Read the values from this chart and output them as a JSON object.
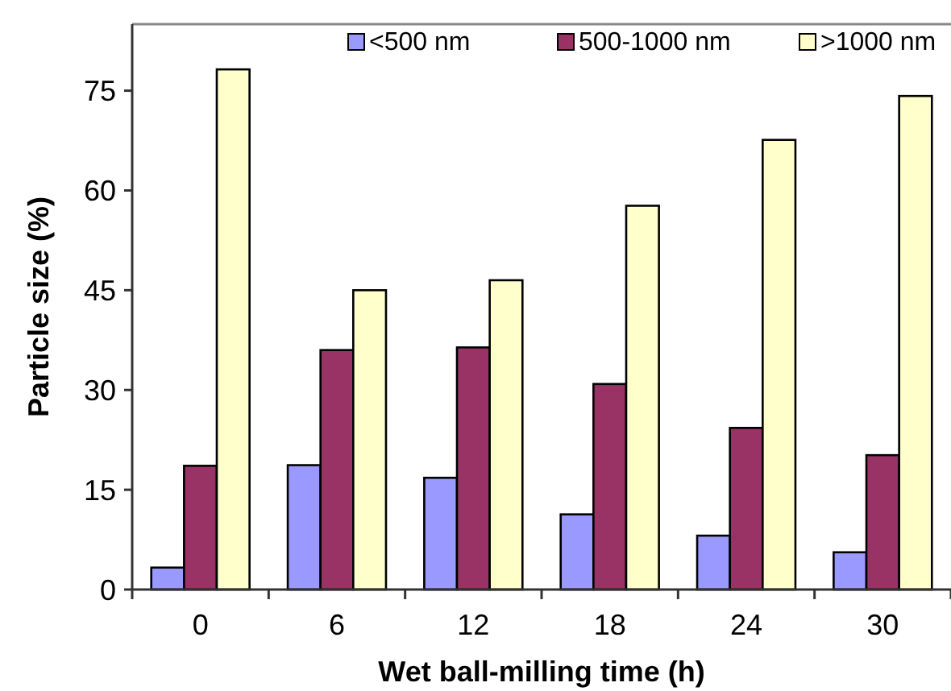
{
  "chart_data": {
    "type": "bar",
    "xlabel": "Wet ball-milling time (h)",
    "ylabel": "Particle size (%)",
    "categories": [
      "0",
      "6",
      "12",
      "18",
      "24",
      "30"
    ],
    "series": [
      {
        "name": "<500 nm",
        "color": "#9999ff",
        "values": [
          3.3,
          18.7,
          16.8,
          11.3,
          8.1,
          5.6
        ]
      },
      {
        "name": "500-1000 nm",
        "color": "#993366",
        "values": [
          18.6,
          36.0,
          36.4,
          30.9,
          24.3,
          20.2
        ]
      },
      {
        "name": ">1000 nm",
        "color": "#ffffcc",
        "values": [
          78.2,
          45.0,
          46.5,
          57.7,
          67.6,
          74.2
        ]
      }
    ],
    "ylim": [
      0,
      85
    ],
    "yticks": [
      0,
      15,
      30,
      45,
      60,
      75
    ],
    "grid": false,
    "legend": "top"
  }
}
